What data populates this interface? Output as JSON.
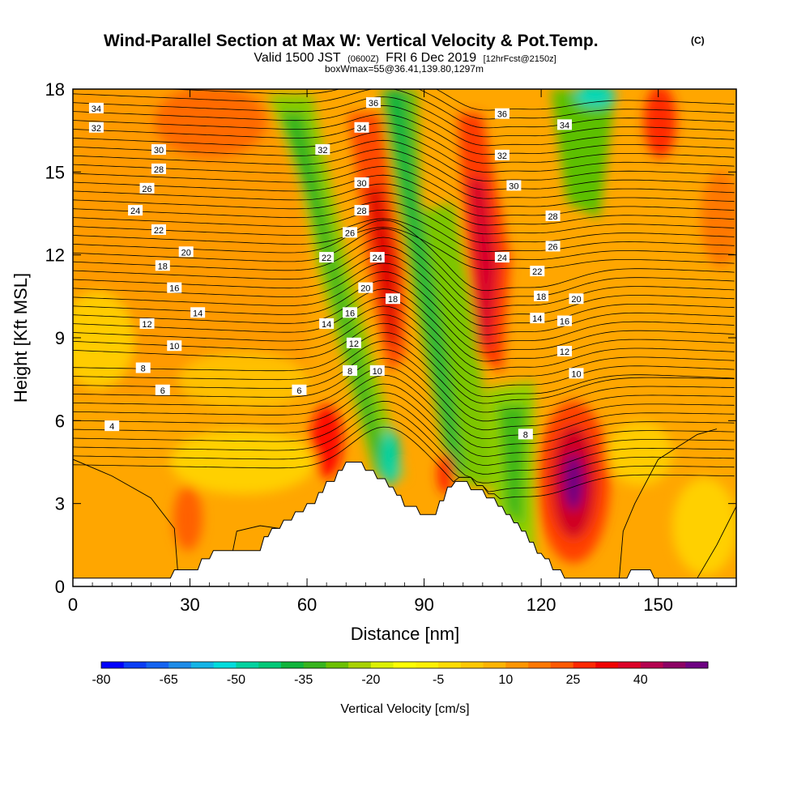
{
  "title": {
    "main": "Wind-Parallel Section at Max W: Vertical Velocity & Pot.Temp.",
    "copyright": "(C)",
    "valid_a": "Valid 1500 JST",
    "valid_b": "(0600Z)",
    "valid_c": "FRI 6 Dec 2019",
    "valid_d": "[12hrFcst@2150z]",
    "box": "boxWmax=55@36.41,139.80,1297m"
  },
  "chart_data": {
    "type": "heatmap",
    "xlabel": "Distance [nm]",
    "ylabel": "Height [Kft MSL]",
    "xlim": [
      0,
      170
    ],
    "ylim": [
      0,
      18
    ],
    "x_ticks": [
      "0",
      "30",
      "60",
      "90",
      "120",
      "150"
    ],
    "y_ticks": [
      "0",
      "3",
      "6",
      "9",
      "12",
      "15",
      "18"
    ],
    "colorbar": {
      "label": "Vertical Velocity [cm/s]",
      "min": -80,
      "max": 55,
      "step": 5,
      "tick_labels": [
        "-80",
        "-65",
        "-50",
        "-35",
        "-20",
        "-5",
        "10",
        "25",
        "40"
      ],
      "colors": [
        "#0000ff",
        "#0a3ef4",
        "#1464f0",
        "#1e8ce8",
        "#14b4e6",
        "#00dcdc",
        "#00d2a0",
        "#00c878",
        "#10b43c",
        "#38b41e",
        "#6cc000",
        "#a8d200",
        "#dcf000",
        "#ffff00",
        "#fff000",
        "#ffdc00",
        "#ffc800",
        "#ffb400",
        "#ff9600",
        "#ff7800",
        "#ff5a00",
        "#ff2800",
        "#f00000",
        "#dc0028",
        "#b40050",
        "#8c0064",
        "#6e0082"
      ]
    },
    "terrain": [
      [
        0,
        0.3
      ],
      [
        25,
        0.3
      ],
      [
        26,
        0.6
      ],
      [
        32,
        0.6
      ],
      [
        33,
        1.0
      ],
      [
        35,
        1.0
      ],
      [
        36,
        1.3
      ],
      [
        48,
        1.3
      ],
      [
        49,
        1.8
      ],
      [
        50,
        1.8
      ],
      [
        51,
        2.1
      ],
      [
        53,
        2.1
      ],
      [
        54,
        2.4
      ],
      [
        56,
        2.4
      ],
      [
        57,
        2.7
      ],
      [
        59,
        2.7
      ],
      [
        60,
        3.0
      ],
      [
        62,
        3.0
      ],
      [
        63,
        3.4
      ],
      [
        64,
        3.4
      ],
      [
        65,
        3.8
      ],
      [
        67,
        3.8
      ],
      [
        68,
        4.2
      ],
      [
        69,
        4.2
      ],
      [
        70,
        4.5
      ],
      [
        74,
        4.5
      ],
      [
        75,
        4.2
      ],
      [
        77,
        4.2
      ],
      [
        78,
        3.9
      ],
      [
        80,
        3.9
      ],
      [
        81,
        3.6
      ],
      [
        82,
        3.6
      ],
      [
        83,
        3.3
      ],
      [
        84,
        3.3
      ],
      [
        85,
        2.9
      ],
      [
        88,
        2.9
      ],
      [
        89,
        2.6
      ],
      [
        93,
        2.6
      ],
      [
        94,
        3.1
      ],
      [
        95,
        3.1
      ],
      [
        96,
        3.6
      ],
      [
        97,
        3.6
      ],
      [
        98,
        3.8
      ],
      [
        101,
        3.8
      ],
      [
        102,
        3.5
      ],
      [
        105,
        3.5
      ],
      [
        106,
        3.2
      ],
      [
        108,
        3.2
      ],
      [
        109,
        2.9
      ],
      [
        110,
        2.9
      ],
      [
        111,
        2.6
      ],
      [
        112,
        2.6
      ],
      [
        113,
        2.3
      ],
      [
        114,
        2.3
      ],
      [
        115,
        2.0
      ],
      [
        116,
        2.0
      ],
      [
        117,
        1.6
      ],
      [
        118,
        1.6
      ],
      [
        119,
        1.2
      ],
      [
        120,
        1.2
      ],
      [
        121,
        1.0
      ],
      [
        122,
        1.0
      ],
      [
        123,
        0.6
      ],
      [
        125,
        0.6
      ],
      [
        126,
        0.3
      ],
      [
        142,
        0.3
      ],
      [
        143,
        0.6
      ],
      [
        148,
        0.6
      ],
      [
        149,
        0.3
      ],
      [
        170,
        0.3
      ]
    ],
    "theta_contour_labels": [
      {
        "v": "34",
        "x": 6,
        "y": 17.3
      },
      {
        "v": "32",
        "x": 6,
        "y": 16.6
      },
      {
        "v": "30",
        "x": 22,
        "y": 15.8
      },
      {
        "v": "28",
        "x": 22,
        "y": 15.1
      },
      {
        "v": "26",
        "x": 19,
        "y": 14.4
      },
      {
        "v": "24",
        "x": 16,
        "y": 13.6
      },
      {
        "v": "22",
        "x": 22,
        "y": 12.9
      },
      {
        "v": "20",
        "x": 29,
        "y": 12.1
      },
      {
        "v": "18",
        "x": 23,
        "y": 11.6
      },
      {
        "v": "16",
        "x": 26,
        "y": 10.8
      },
      {
        "v": "14",
        "x": 32,
        "y": 9.9
      },
      {
        "v": "12",
        "x": 19,
        "y": 9.5
      },
      {
        "v": "10",
        "x": 26,
        "y": 8.7
      },
      {
        "v": "8",
        "x": 18,
        "y": 7.9
      },
      {
        "v": "6",
        "x": 23,
        "y": 7.1
      },
      {
        "v": "4",
        "x": 10,
        "y": 5.8
      },
      {
        "v": "36",
        "x": 77,
        "y": 17.5
      },
      {
        "v": "34",
        "x": 74,
        "y": 16.6
      },
      {
        "v": "32",
        "x": 64,
        "y": 15.8
      },
      {
        "v": "30",
        "x": 74,
        "y": 14.6
      },
      {
        "v": "28",
        "x": 74,
        "y": 13.6
      },
      {
        "v": "26",
        "x": 71,
        "y": 12.8
      },
      {
        "v": "22",
        "x": 65,
        "y": 11.9
      },
      {
        "v": "24",
        "x": 78,
        "y": 11.9
      },
      {
        "v": "20",
        "x": 75,
        "y": 10.8
      },
      {
        "v": "18",
        "x": 82,
        "y": 10.4
      },
      {
        "v": "16",
        "x": 71,
        "y": 9.9
      },
      {
        "v": "14",
        "x": 65,
        "y": 9.5
      },
      {
        "v": "12",
        "x": 72,
        "y": 8.8
      },
      {
        "v": "10",
        "x": 78,
        "y": 7.8
      },
      {
        "v": "8",
        "x": 71,
        "y": 7.8
      },
      {
        "v": "6",
        "x": 58,
        "y": 7.1
      },
      {
        "v": "36",
        "x": 110,
        "y": 17.1
      },
      {
        "v": "34",
        "x": 126,
        "y": 16.7
      },
      {
        "v": "32",
        "x": 110,
        "y": 15.6
      },
      {
        "v": "30",
        "x": 113,
        "y": 14.5
      },
      {
        "v": "28",
        "x": 123,
        "y": 13.4
      },
      {
        "v": "26",
        "x": 123,
        "y": 12.3
      },
      {
        "v": "24",
        "x": 110,
        "y": 11.9
      },
      {
        "v": "22",
        "x": 119,
        "y": 11.4
      },
      {
        "v": "20",
        "x": 129,
        "y": 10.4
      },
      {
        "v": "18",
        "x": 120,
        "y": 10.5
      },
      {
        "v": "16",
        "x": 126,
        "y": 9.6
      },
      {
        "v": "14",
        "x": 119,
        "y": 9.7
      },
      {
        "v": "12",
        "x": 126,
        "y": 8.5
      },
      {
        "v": "10",
        "x": 129,
        "y": 7.7
      },
      {
        "v": "8",
        "x": 116,
        "y": 5.5
      }
    ]
  }
}
